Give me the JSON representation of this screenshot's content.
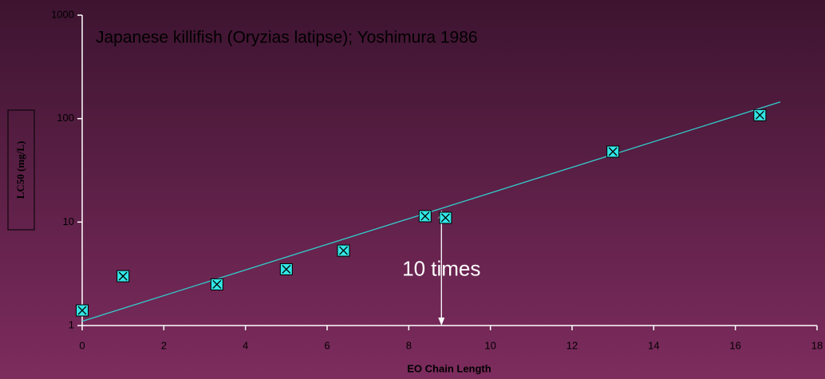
{
  "chart_data": {
    "type": "scatter",
    "title": "Japanese killifish (Oryzias latipse); Yoshimura 1986",
    "x_label": "EO Chain Length",
    "y_label": "LC50 (mg/L)",
    "x": [
      0,
      1,
      3.3,
      5,
      6.4,
      8.4,
      8.9,
      13,
      16.6
    ],
    "values": [
      1.4,
      3.0,
      2.5,
      3.5,
      5.3,
      11.4,
      11,
      48,
      108
    ],
    "color": "#33e6e6",
    "trendline": {
      "x": [
        0,
        17.1
      ],
      "values": [
        1.1,
        145
      ],
      "color": "#33cccc"
    },
    "annotation": {
      "text": "10 times",
      "x": 8.8,
      "y": [
        1,
        13
      ]
    },
    "xlim": [
      0,
      18
    ],
    "xticks": [
      0,
      2,
      4,
      6,
      8,
      10,
      12,
      14,
      16,
      18
    ],
    "ylim": [
      1,
      1000
    ],
    "yticks": [
      1,
      10,
      100,
      1000
    ],
    "log_y": true,
    "grid": false
  }
}
